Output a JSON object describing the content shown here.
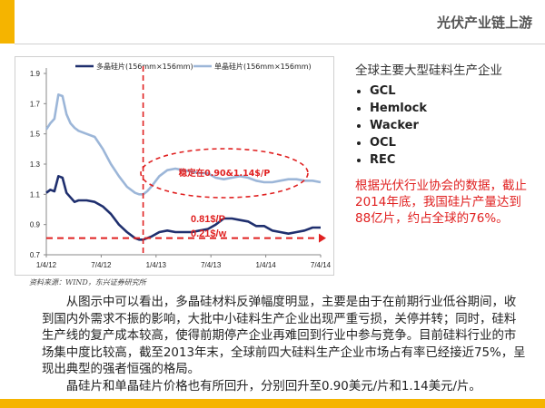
{
  "header": {
    "title": "光伏产业链上游"
  },
  "chart_data": {
    "type": "line",
    "x_ticks": [
      "1/4/12",
      "7/4/12",
      "1/4/13",
      "7/4/13",
      "1/4/14",
      "7/4/14"
    ],
    "y_ticks": [
      "0.7",
      "0.9",
      "1.1",
      "1.3",
      "1.5",
      "1.7",
      "1.9"
    ],
    "ylim": [
      0.7,
      1.9
    ],
    "x_unit": "months since 1/4/12",
    "xlim": [
      0,
      34
    ],
    "series": [
      {
        "name": "多晶硅片(156mm×156mm)",
        "color": "#1f2f6e",
        "x": [
          0,
          0.5,
          1,
          1.5,
          2,
          2.5,
          3,
          3.5,
          4,
          5,
          6,
          7,
          8,
          9,
          10,
          11,
          11.5,
          12,
          12.5,
          13,
          14,
          15,
          16,
          17,
          18,
          19,
          20,
          21,
          22,
          23,
          24,
          25,
          26,
          27,
          28,
          29,
          30,
          31,
          32,
          33,
          34
        ],
        "y": [
          1.11,
          1.13,
          1.12,
          1.22,
          1.21,
          1.11,
          1.08,
          1.05,
          1.06,
          1.06,
          1.05,
          1.02,
          0.97,
          0.9,
          0.85,
          0.81,
          0.8,
          0.8,
          0.81,
          0.82,
          0.85,
          0.86,
          0.85,
          0.85,
          0.85,
          0.86,
          0.87,
          0.9,
          0.94,
          0.94,
          0.93,
          0.92,
          0.89,
          0.89,
          0.86,
          0.85,
          0.84,
          0.85,
          0.86,
          0.88,
          0.88
        ]
      },
      {
        "name": "单晶硅片(156mm×156mm)",
        "color": "#9cb6d8",
        "x": [
          0,
          0.5,
          1,
          1.5,
          2,
          2.5,
          3,
          3.5,
          4,
          5,
          6,
          7,
          8,
          9,
          10,
          11,
          11.5,
          12,
          12.5,
          13,
          14,
          15,
          16,
          17,
          18,
          19,
          20,
          21,
          22,
          23,
          24,
          25,
          26,
          27,
          28,
          29,
          30,
          31,
          32,
          33,
          34
        ],
        "y": [
          1.53,
          1.57,
          1.6,
          1.76,
          1.75,
          1.63,
          1.57,
          1.54,
          1.52,
          1.5,
          1.48,
          1.4,
          1.3,
          1.22,
          1.15,
          1.11,
          1.1,
          1.1,
          1.12,
          1.15,
          1.22,
          1.26,
          1.27,
          1.26,
          1.25,
          1.24,
          1.24,
          1.21,
          1.2,
          1.21,
          1.22,
          1.21,
          1.19,
          1.18,
          1.18,
          1.19,
          1.2,
          1.2,
          1.19,
          1.19,
          1.18
        ]
      }
    ],
    "annotations": {
      "ellipse_label": "稳定在0.90&1.14$/P",
      "line_label_1": "0.81$/P",
      "line_label_2": "0.21$/w",
      "reference_y": 0.81,
      "annotation_color": "#e02020"
    }
  },
  "source_text": "资料来源：WIND，东兴证券研究所",
  "side": {
    "heading": "全球主要大型硅料生产企业",
    "companies": [
      "GCL",
      "Hemlock",
      "Wacker",
      "OCL",
      "REC"
    ],
    "note": "根据光伏行业协会的数据，截止2014年底，我国硅片产量达到88亿片，约占全球的76%。"
  },
  "body": {
    "paragraph_1": "从图示中可以看出，多晶硅材料反弹幅度明显，主要是由于在前期行业低谷期间，收到国内外需求不振的影响，大批中小硅料生产企业出现严重亏损，关停并转；同时，硅料生产线的复产成本较高，使得前期停产企业再难回到行业中参与竞争。目前硅料行业的市场集中度比较高，截至2013年末，全球前四大硅料生产企业市场占有率已经接近75%，呈现出典型的强者恒强的格局。",
    "paragraph_2": "晶硅片和单晶硅片价格也有所回升，分别回升至0.90美元/片和1.14美元/片。"
  },
  "colors": {
    "accent": "#f5b400",
    "red": "#e02020"
  }
}
